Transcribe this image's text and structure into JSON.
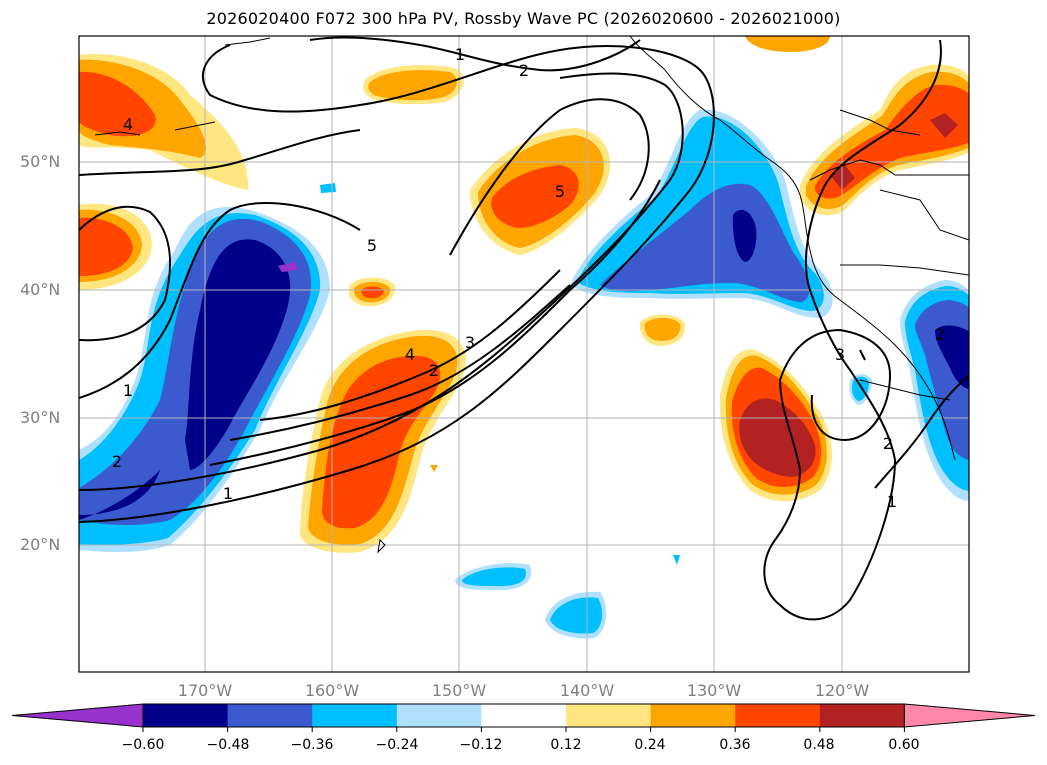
{
  "title": "2026020400 F072 300 hPa PV, Rossby Wave PC (2026020600 - 2026021000)",
  "lat_labels": [
    "50°N",
    "40°N",
    "30°N",
    "20°N"
  ],
  "lon_labels": [
    "170°W",
    "160°W",
    "150°W",
    "140°W",
    "130°W",
    "120°W"
  ],
  "contour_labels": [
    "1",
    "2",
    "4",
    "5",
    "5",
    "4",
    "3",
    "2",
    "2",
    "1",
    "1",
    "2",
    "3",
    "2",
    "1"
  ],
  "colorbar": {
    "ticks": [
      "−0.60",
      "−0.48",
      "−0.36",
      "−0.24",
      "−0.12",
      "0.12",
      "0.24",
      "0.36",
      "0.48",
      "0.60"
    ],
    "colors": [
      "#9932cc",
      "#00008b",
      "#3a5acd",
      "#00bfff",
      "#b0e0ff",
      "#ffffff",
      "#ffe680",
      "#ffa500",
      "#ff4500",
      "#b22222",
      "#ff88aa"
    ]
  },
  "palette": {
    "neg_strong": "#00008b",
    "neg_mid": "#3a5acd",
    "neg_weak": "#00bfff",
    "neg_faint": "#b0e0ff",
    "pos_faint": "#ffe680",
    "pos_weak": "#ffa500",
    "pos_mid": "#ff4500",
    "pos_strong": "#b22222"
  }
}
